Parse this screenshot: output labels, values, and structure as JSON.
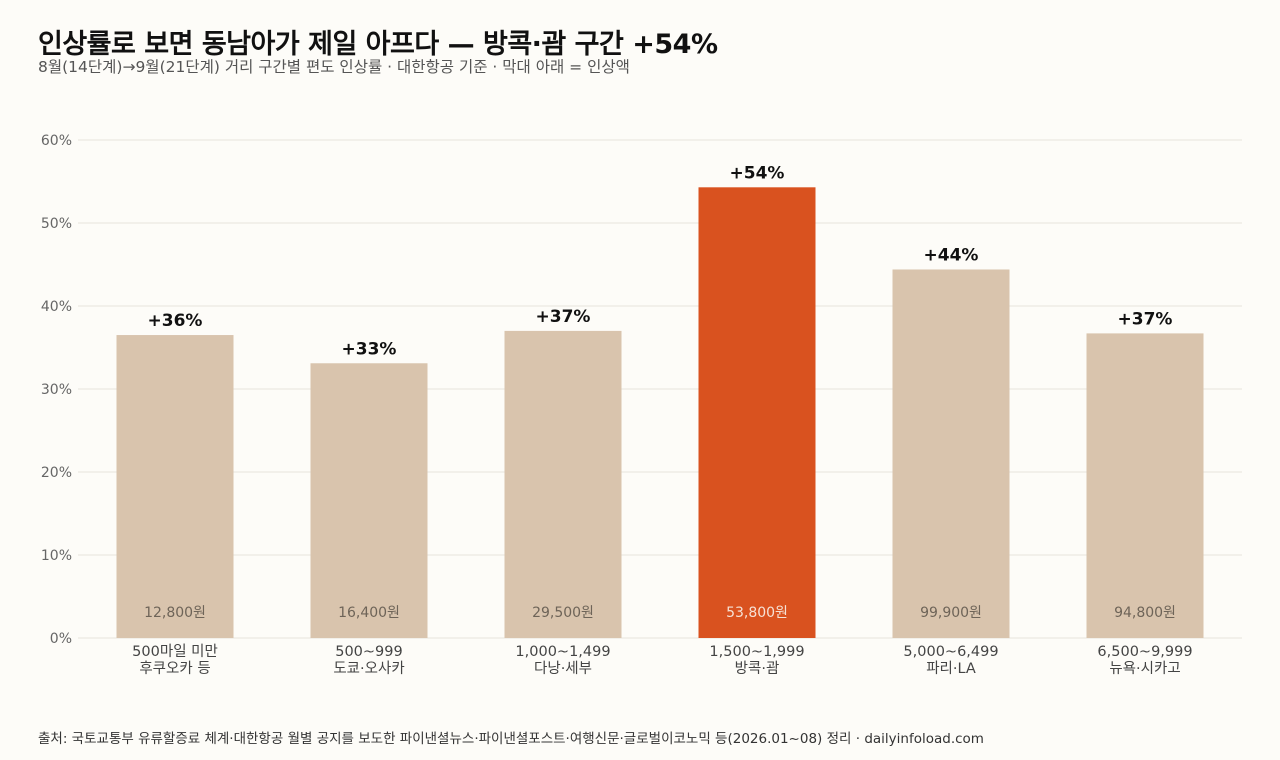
{
  "title": "인상률로 보면 동남아가 제일 아프다 — 방콕·괌 구간 +54%",
  "subtitle": "8월(14단계)→9월(21단계) 거리 구간별 편도 인상률 · 대한항공 기준 · 막대 아래 = 인상액",
  "source": "출처: 국토교통부 유류할증료 체계·대한항공 월별 공지를 보도한 파이낸셜뉴스·파이낸셜포스트·여행신문·글로벌이코노믹 등(2026.01~08) 정리 · dailyinfoload.com",
  "colors": {
    "bar": "#d9c4ad",
    "highlight": "#d9521f",
    "grid": "#e6e3dd"
  },
  "chart_data": {
    "type": "bar",
    "title": "인상률로 보면 동남아가 제일 아프다 — 방콕·괌 구간 +54%",
    "ylim": [
      0,
      60
    ],
    "y_ticks": [
      "0%",
      "10%",
      "20%",
      "30%",
      "40%",
      "50%",
      "60%"
    ],
    "grid": true,
    "highlight_index": 3,
    "categories": [
      [
        "500마일 미만",
        "후쿠오카 등"
      ],
      [
        "500~999",
        "도쿄·오사카"
      ],
      [
        "1,000~1,499",
        "다낭·세부"
      ],
      [
        "1,500~1,999",
        "방콕·괌"
      ],
      [
        "5,000~6,499",
        "파리·LA"
      ],
      [
        "6,500~9,999",
        "뉴욕·시카고"
      ]
    ],
    "values": [
      36.5,
      33.1,
      37.0,
      54.3,
      44.4,
      36.7
    ],
    "value_labels": [
      "+36%",
      "+33%",
      "+37%",
      "+54%",
      "+44%",
      "+37%"
    ],
    "amount_labels": [
      "12,800원",
      "16,400원",
      "29,500원",
      "53,800원",
      "99,900원",
      "94,800원"
    ]
  }
}
